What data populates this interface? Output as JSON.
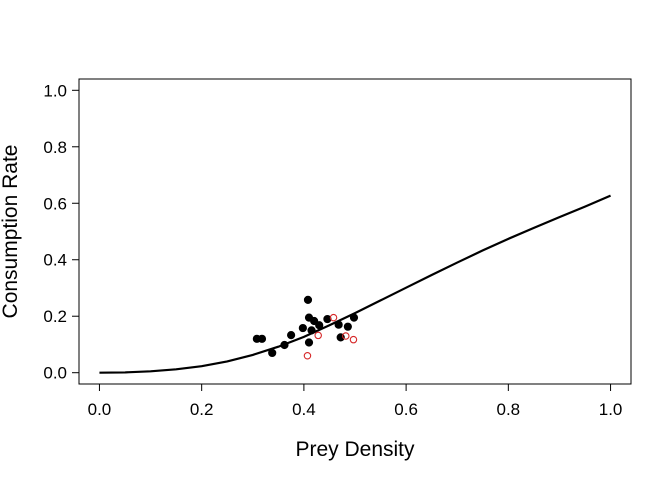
{
  "chart_data": {
    "type": "scatter",
    "title": "",
    "xlabel": "Prey Density",
    "ylabel": "Consumption Rate",
    "xlim": [
      -0.04,
      1.04
    ],
    "ylim": [
      -0.04,
      1.04
    ],
    "x_ticks": [
      0.0,
      0.2,
      0.4,
      0.6,
      0.8,
      1.0
    ],
    "x_tick_labels": [
      "0.0",
      "0.2",
      "0.4",
      "0.6",
      "0.8",
      "1.0"
    ],
    "y_ticks": [
      0.0,
      0.2,
      0.4,
      0.6,
      0.8,
      1.0
    ],
    "y_tick_labels": [
      "0.0",
      "0.2",
      "0.4",
      "0.6",
      "0.8",
      "1.0"
    ],
    "grid": false,
    "legend": "none",
    "series": [
      {
        "kind": "points",
        "marker": "filled-circle",
        "color": "#000000",
        "points": [
          [
            0.308,
            0.12
          ],
          [
            0.318,
            0.12
          ],
          [
            0.338,
            0.07
          ],
          [
            0.362,
            0.098
          ],
          [
            0.375,
            0.133
          ],
          [
            0.398,
            0.158
          ],
          [
            0.408,
            0.258
          ],
          [
            0.41,
            0.195
          ],
          [
            0.415,
            0.15
          ],
          [
            0.42,
            0.183
          ],
          [
            0.43,
            0.168
          ],
          [
            0.446,
            0.19
          ],
          [
            0.41,
            0.107
          ],
          [
            0.468,
            0.17
          ],
          [
            0.472,
            0.125
          ],
          [
            0.486,
            0.163
          ],
          [
            0.498,
            0.195
          ]
        ]
      },
      {
        "kind": "points",
        "marker": "open-circle",
        "color": "#d62728",
        "points": [
          [
            0.407,
            0.06
          ],
          [
            0.428,
            0.132
          ],
          [
            0.458,
            0.195
          ],
          [
            0.482,
            0.13
          ],
          [
            0.497,
            0.117
          ]
        ]
      },
      {
        "kind": "line",
        "color": "#000000",
        "x": [
          0.0,
          0.05,
          0.1,
          0.15,
          0.2,
          0.25,
          0.3,
          0.35,
          0.4,
          0.45,
          0.5,
          0.55,
          0.6,
          0.65,
          0.7,
          0.75,
          0.8,
          0.85,
          0.9,
          0.95,
          1.0
        ],
        "y": [
          0.0,
          0.001,
          0.005,
          0.012,
          0.023,
          0.04,
          0.063,
          0.092,
          0.127,
          0.168,
          0.211,
          0.256,
          0.301,
          0.346,
          0.39,
          0.433,
          0.474,
          0.513,
          0.551,
          0.588,
          0.627
        ]
      }
    ]
  }
}
